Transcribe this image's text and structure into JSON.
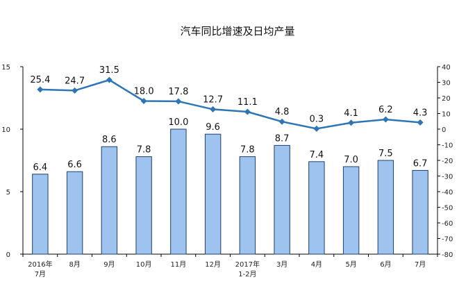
{
  "chart_data": {
    "type": "bar",
    "title": "汽车同比增速及日均产量",
    "categories": [
      [
        "2016年",
        "7月"
      ],
      [
        "8月"
      ],
      [
        "9月"
      ],
      [
        "10月"
      ],
      [
        "11月"
      ],
      [
        "12月"
      ],
      [
        "2017年",
        "1-2月"
      ],
      [
        "3月"
      ],
      [
        "4月"
      ],
      [
        "5月"
      ],
      [
        "6月"
      ],
      [
        "7月"
      ]
    ],
    "series": [
      {
        "kind": "bar",
        "axis": "left",
        "values": [
          6.4,
          6.6,
          8.6,
          7.8,
          10.0,
          9.6,
          7.8,
          8.7,
          7.4,
          7.0,
          7.5,
          6.7
        ],
        "labels": [
          "6.4",
          "6.6",
          "8.6",
          "7.8",
          "10.0",
          "9.6",
          "7.8",
          "8.7",
          "7.4",
          "7.0",
          "7.5",
          "6.7"
        ]
      },
      {
        "kind": "line",
        "axis": "right",
        "values": [
          25.4,
          24.7,
          31.5,
          18.0,
          17.8,
          12.7,
          11.1,
          4.8,
          0.3,
          4.1,
          6.2,
          4.3
        ],
        "labels": [
          "25.4",
          "24.7",
          "31.5",
          "18.0",
          "17.8",
          "12.7",
          "11.1",
          "4.8",
          "0.3",
          "4.1",
          "6.2",
          "4.3"
        ]
      }
    ],
    "y_left": {
      "min": 0,
      "max": 15,
      "ticks": [
        "0",
        "5",
        "10",
        "15"
      ]
    },
    "y_right": {
      "min": -80,
      "max": 40,
      "ticks": [
        "40",
        "30",
        "20",
        "10",
        "0",
        "-10",
        "-20",
        "-30",
        "-40",
        "-50",
        "-60",
        "-70",
        "-80"
      ]
    },
    "colors": {
      "bar_fill": "#9DC3EE",
      "bar_stroke": "#1F3F6E",
      "line": "#2E75B6",
      "axis": "#000000"
    },
    "grid": false,
    "legend": "none"
  }
}
